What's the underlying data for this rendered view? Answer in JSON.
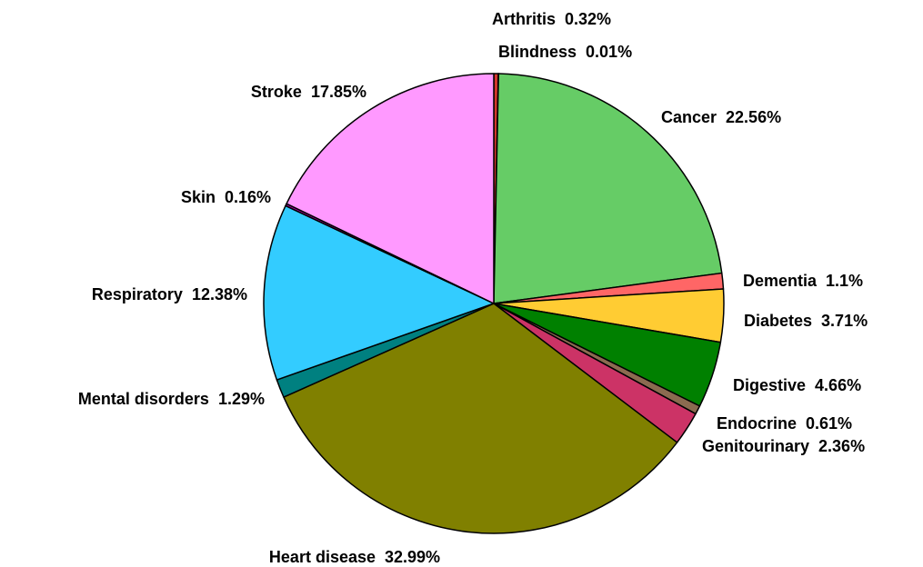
{
  "chart_data": {
    "type": "pie",
    "categories": [
      "Arthritis",
      "Blindness",
      "Cancer",
      "Dementia",
      "Diabetes",
      "Digestive",
      "Endocrine",
      "Genitourinary",
      "Heart disease",
      "Mental disorders",
      "Respiratory",
      "Skin",
      "Stroke"
    ],
    "values": [
      0.32,
      0.01,
      22.56,
      1.1,
      3.71,
      4.66,
      0.61,
      2.36,
      32.99,
      1.29,
      12.38,
      0.16,
      17.85
    ],
    "value_labels": [
      "0.32%",
      "0.01%",
      "22.56%",
      "1.1%",
      "3.71%",
      "4.66%",
      "0.61%",
      "2.36%",
      "32.99%",
      "1.29%",
      "12.38%",
      "0.16%",
      "17.85%"
    ],
    "colors": [
      "#d2362b",
      "#b03060",
      "#66cc66",
      "#ff6666",
      "#ffcc33",
      "#008000",
      "#8b6b50",
      "#cc3366",
      "#808000",
      "#008080",
      "#33ccff",
      "#990099",
      "#ff99ff"
    ]
  }
}
